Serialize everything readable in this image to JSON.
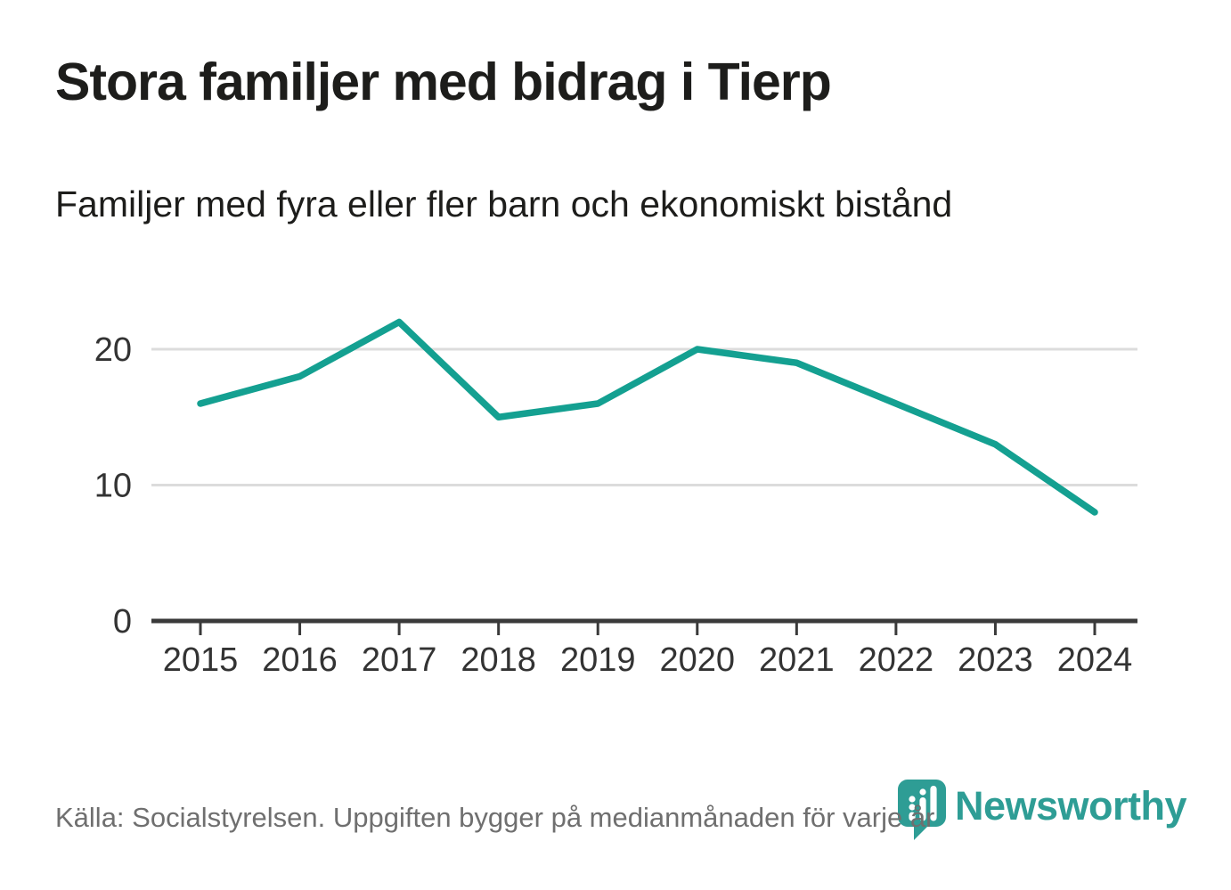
{
  "header": {
    "title": "Stora familjer med bidrag i Tierp",
    "subtitle": "Familjer med fyra eller fler barn och ekonomiskt bistånd"
  },
  "chart_data": {
    "type": "line",
    "title": "Stora familjer med bidrag i Tierp",
    "subtitle": "Familjer med fyra eller fler barn och ekonomiskt bistånd",
    "categories": [
      "2015",
      "2016",
      "2017",
      "2018",
      "2019",
      "2020",
      "2021",
      "2022",
      "2023",
      "2024"
    ],
    "values": [
      16,
      18,
      22,
      15,
      16,
      20,
      19,
      16,
      13,
      8
    ],
    "xlabel": "",
    "ylabel": "",
    "ylim": [
      0,
      24
    ],
    "y_ticks": [
      0,
      10,
      20
    ],
    "grid": "horizontal-light-gray-at-10-and-20",
    "legend": "none",
    "line_color": "#14a091",
    "axis_color": "#3a3a3a",
    "gridline_color": "#dcdcdc",
    "tick_label_color": "#333333"
  },
  "footer": {
    "source": "Källa: Socialstyrelsen. Uppgiften bygger på medianmånaden för varje år",
    "logo_text": "Newsworthy",
    "logo_color": "#2e9d95",
    "logo_icon": "newsworthy-pin-bar-chart-badge"
  }
}
